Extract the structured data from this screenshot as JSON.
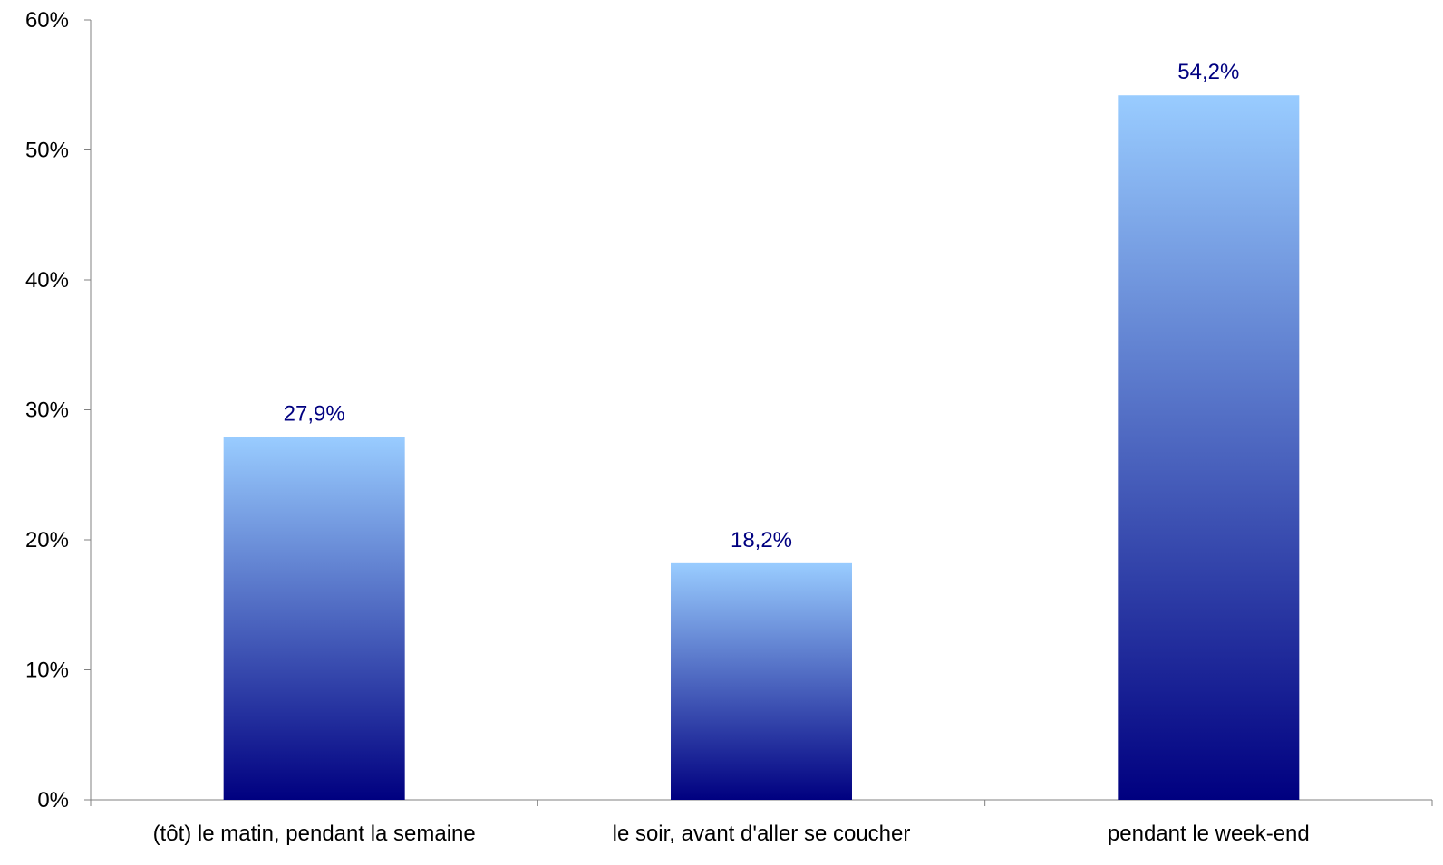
{
  "chart_data": {
    "type": "bar",
    "categories": [
      "(tôt) le matin, pendant la semaine",
      "le soir, avant d'aller se coucher",
      "pendant le week-end"
    ],
    "values": [
      27.9,
      18.2,
      54.2
    ],
    "data_labels": [
      "27,9%",
      "18,2%",
      "54,2%"
    ],
    "title": "",
    "xlabel": "",
    "ylabel": "",
    "ylim": [
      0,
      60
    ],
    "yticks": [
      0,
      10,
      20,
      30,
      40,
      50,
      60
    ],
    "ytick_labels": [
      "0%",
      "10%",
      "20%",
      "30%",
      "40%",
      "50%",
      "60%"
    ],
    "grid": false,
    "legend": "none",
    "colors": {
      "bar_top": "#99ccff",
      "bar_bottom": "#000080",
      "data_label": "#000080",
      "axis": "#808080",
      "text": "#000000"
    }
  }
}
